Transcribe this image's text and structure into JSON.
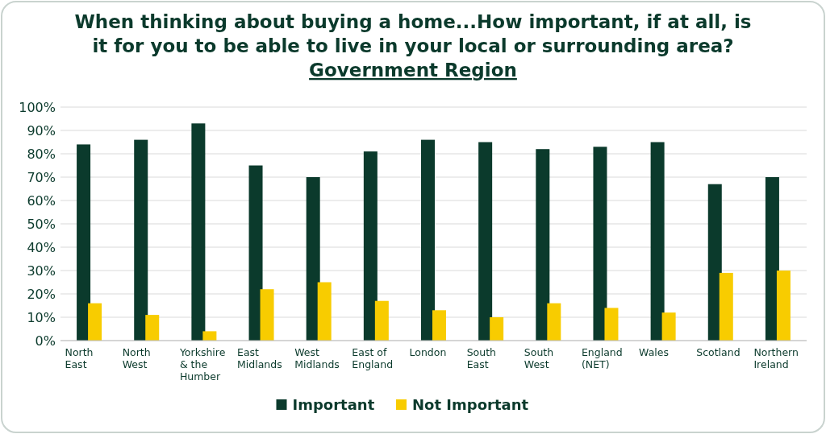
{
  "chart_data": {
    "type": "bar",
    "title": "When thinking about buying a home...How important, if at all, is it for you to be able to live in your local or surrounding area?",
    "subtitle": "Government Region",
    "categories": [
      "North East",
      "North West",
      "Yorkshire & the Humber",
      "East Midlands",
      "West Midlands",
      "East of England",
      "London",
      "South East",
      "South West",
      "England (NET)",
      "Wales",
      "Scotland",
      "Northern Ireland"
    ],
    "series": [
      {
        "name": "Important",
        "color": "#0b3a2c",
        "values": [
          84,
          86,
          93,
          75,
          70,
          81,
          86,
          85,
          82,
          83,
          85,
          67,
          70
        ]
      },
      {
        "name": "Not Important",
        "color": "#f8cc00",
        "values": [
          16,
          11,
          4,
          22,
          25,
          17,
          13,
          10,
          16,
          14,
          12,
          29,
          30
        ]
      }
    ],
    "ylim": [
      0,
      100
    ],
    "yticks": [
      {
        "value": 0,
        "label": "0%"
      },
      {
        "value": 10,
        "label": "10%"
      },
      {
        "value": 20,
        "label": "20%"
      },
      {
        "value": 30,
        "label": "30%"
      },
      {
        "value": 40,
        "label": "40%"
      },
      {
        "value": 50,
        "label": "50%"
      },
      {
        "value": 60,
        "label": "60%"
      },
      {
        "value": 70,
        "label": "70%"
      },
      {
        "value": 80,
        "label": "80%"
      },
      {
        "value": 90,
        "label": "90%"
      },
      {
        "value": 100,
        "label": "100%"
      }
    ],
    "grid": "y",
    "legend": "bottom"
  }
}
